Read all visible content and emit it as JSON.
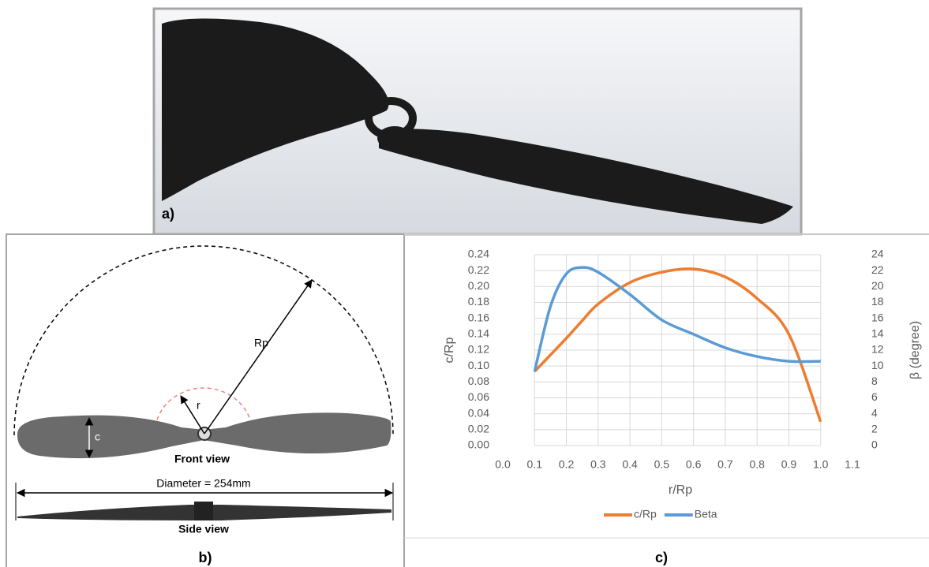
{
  "panels": {
    "a": {
      "label": "a)"
    },
    "b": {
      "label": "b)",
      "c_label": "c",
      "r_label": "r",
      "rp_label": "Rp",
      "front_view": "Front view",
      "diameter": "Diameter = 254mm",
      "side_view": "Side view"
    },
    "c": {
      "label": "c)"
    }
  },
  "chart_data": {
    "type": "line",
    "x_label": "r/Rp",
    "y_label": "c/Rp",
    "y2_label": "β (degree)",
    "x": [
      0.1,
      0.15,
      0.2,
      0.25,
      0.3,
      0.4,
      0.5,
      0.6,
      0.7,
      0.8,
      0.9,
      1.0
    ],
    "series": [
      {
        "name": "c/Rp",
        "color": "#ED7D31",
        "values": [
          0.093,
          0.114,
          0.135,
          0.157,
          0.178,
          0.205,
          0.218,
          0.222,
          0.212,
          0.185,
          0.14,
          0.03
        ]
      },
      {
        "name": "Beta",
        "color": "#5B9BD5",
        "axis": "y2",
        "values": [
          9.3,
          17.5,
          21.6,
          22.4,
          21.8,
          19.0,
          15.8,
          14.0,
          12.3,
          11.2,
          10.6,
          10.6
        ]
      }
    ],
    "xlim": [
      0,
      1.1
    ],
    "xticks": [
      {
        "value": 0,
        "label": "0.0"
      },
      0.1,
      0.2,
      0.3,
      0.4,
      0.5,
      0.6,
      0.7,
      0.8,
      0.9,
      {
        "value": 1,
        "label": "1.0"
      },
      1.1
    ],
    "ylim": [
      0,
      0.24
    ],
    "yticks": [
      {
        "value": 0,
        "label": "0.00"
      },
      0.02,
      0.04,
      0.06,
      0.08,
      {
        "value": 0.1,
        "label": "0.10"
      },
      0.12,
      0.14,
      0.16,
      0.18,
      {
        "value": 0.2,
        "label": "0.20"
      },
      0.22,
      0.24
    ],
    "y2lim": [
      0,
      24
    ],
    "y2ticks": [
      0,
      2,
      4,
      6,
      8,
      10,
      12,
      14,
      16,
      18,
      20,
      22,
      24
    ],
    "grid": true,
    "legend": "bottom"
  }
}
